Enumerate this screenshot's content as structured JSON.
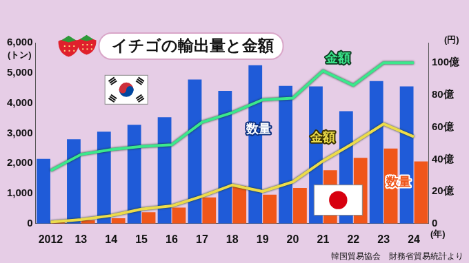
{
  "chart_data": {
    "type": "bar",
    "title": "イチゴの輸出量と金額",
    "categories": [
      "2012",
      "13",
      "14",
      "15",
      "16",
      "17",
      "18",
      "19",
      "20",
      "21",
      "22",
      "23",
      "24"
    ],
    "series": [
      {
        "name": "数量",
        "type": "bar",
        "color": "#1f5bd8",
        "values": [
          2150,
          2800,
          3050,
          3280,
          3530,
          4780,
          4400,
          5250,
          4570,
          4550,
          3730,
          4730,
          4550
        ]
      },
      {
        "name": "数量",
        "type": "bar",
        "color": "#f0561a",
        "values": [
          90,
          110,
          180,
          380,
          530,
          870,
          1250,
          960,
          1180,
          1770,
          2180,
          2490,
          2060
        ]
      },
      {
        "name": "金額",
        "type": "line",
        "color": "#3be88c",
        "axis": "y2",
        "values": [
          33,
          43,
          46,
          48,
          49,
          63,
          69,
          77,
          78,
          95,
          86,
          100,
          100
        ]
      },
      {
        "name": "金額",
        "type": "line",
        "color": "#ecdc4a",
        "axis": "y2",
        "values": [
          1,
          2.5,
          5,
          9,
          11,
          17,
          24,
          20,
          26,
          39,
          50,
          62,
          54
        ]
      }
    ],
    "ylim": [
      0,
      6000
    ],
    "yticks": [
      0,
      {
        "value": 1000,
        "label": "1,000"
      },
      {
        "value": 2000,
        "label": "2,000"
      },
      {
        "value": 3000,
        "label": "3,000"
      },
      {
        "value": 4000,
        "label": "4,000"
      },
      {
        "value": 5000,
        "label": "5,000"
      },
      {
        "value": 6000,
        "label": "6,000"
      }
    ],
    "y2lim": [
      0,
      112.5
    ],
    "y2ticks": [
      0,
      {
        "value": 20,
        "label": "20億"
      },
      {
        "value": 40,
        "label": "40億"
      },
      {
        "value": 60,
        "label": "60億"
      },
      {
        "value": 80,
        "label": "80億"
      },
      {
        "value": 100,
        "label": "100億"
      }
    ],
    "y_label": "(トン)",
    "y2_label": "(円)",
    "x_label": "(年)",
    "source": "韓国貿易協会　財務省貿易統計より",
    "grid": false
  }
}
